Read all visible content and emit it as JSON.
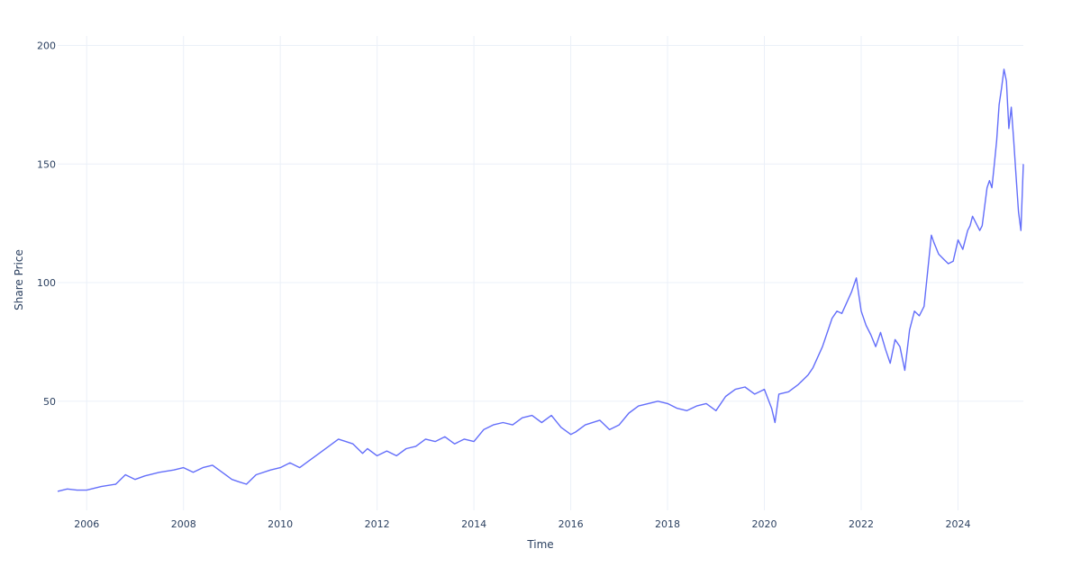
{
  "chart_data": {
    "type": "line",
    "title": "",
    "xlabel": "Time",
    "ylabel": "Share Price",
    "xlim": [
      2005.4,
      2025.35
    ],
    "ylim": [
      4,
      204
    ],
    "x_ticks": [
      {
        "value": 2006,
        "label": "2006"
      },
      {
        "value": 2008,
        "label": "2008"
      },
      {
        "value": 2010,
        "label": "2010"
      },
      {
        "value": 2012,
        "label": "2012"
      },
      {
        "value": 2014,
        "label": "2014"
      },
      {
        "value": 2016,
        "label": "2016"
      },
      {
        "value": 2018,
        "label": "2018"
      },
      {
        "value": 2020,
        "label": "2020"
      },
      {
        "value": 2022,
        "label": "2022"
      },
      {
        "value": 2024,
        "label": "2024"
      }
    ],
    "y_ticks": [
      {
        "value": 50,
        "label": "50"
      },
      {
        "value": 100,
        "label": "100"
      },
      {
        "value": 150,
        "label": "150"
      },
      {
        "value": 200,
        "label": "200"
      }
    ],
    "grid": true,
    "line_color": "#636efa",
    "series": [
      {
        "name": "",
        "x": [
          2005.4,
          2005.6,
          2005.8,
          2006.0,
          2006.3,
          2006.6,
          2006.8,
          2007.0,
          2007.2,
          2007.5,
          2007.8,
          2008.0,
          2008.2,
          2008.4,
          2008.6,
          2008.8,
          2009.0,
          2009.15,
          2009.3,
          2009.5,
          2009.8,
          2010.0,
          2010.2,
          2010.4,
          2010.6,
          2010.8,
          2011.0,
          2011.2,
          2011.5,
          2011.7,
          2011.8,
          2012.0,
          2012.2,
          2012.4,
          2012.6,
          2012.8,
          2013.0,
          2013.2,
          2013.4,
          2013.6,
          2013.8,
          2014.0,
          2014.2,
          2014.4,
          2014.6,
          2014.8,
          2015.0,
          2015.2,
          2015.4,
          2015.6,
          2015.8,
          2016.0,
          2016.1,
          2016.3,
          2016.6,
          2016.8,
          2017.0,
          2017.2,
          2017.4,
          2017.6,
          2017.8,
          2018.0,
          2018.2,
          2018.4,
          2018.6,
          2018.8,
          2019.0,
          2019.2,
          2019.4,
          2019.6,
          2019.8,
          2020.0,
          2020.15,
          2020.22,
          2020.3,
          2020.5,
          2020.7,
          2020.9,
          2021.0,
          2021.2,
          2021.4,
          2021.5,
          2021.6,
          2021.8,
          2021.9,
          2022.0,
          2022.1,
          2022.2,
          2022.3,
          2022.4,
          2022.5,
          2022.6,
          2022.7,
          2022.8,
          2022.9,
          2023.0,
          2023.1,
          2023.2,
          2023.3,
          2023.45,
          2023.5,
          2023.6,
          2023.7,
          2023.8,
          2023.9,
          2024.0,
          2024.1,
          2024.2,
          2024.25,
          2024.3,
          2024.45,
          2024.5,
          2024.6,
          2024.65,
          2024.7,
          2024.75,
          2024.8,
          2024.85,
          2024.9,
          2024.95,
          2025.0,
          2025.05,
          2025.1,
          2025.15,
          2025.2,
          2025.25,
          2025.3,
          2025.35
        ],
        "values": [
          12,
          13,
          12.5,
          12.5,
          14,
          15,
          19,
          17,
          18.5,
          20,
          21,
          22,
          20,
          22,
          23,
          20,
          17,
          16,
          15,
          19,
          21,
          22,
          24,
          22,
          25,
          28,
          31,
          34,
          32,
          28,
          30,
          27,
          29,
          27,
          30,
          31,
          34,
          33,
          35,
          32,
          34,
          33,
          38,
          40,
          41,
          40,
          43,
          44,
          41,
          44,
          39,
          36,
          37,
          40,
          42,
          38,
          40,
          45,
          48,
          49,
          50,
          49,
          47,
          46,
          48,
          49,
          46,
          52,
          55,
          56,
          53,
          55,
          47,
          41,
          53,
          54,
          57,
          61,
          64,
          73,
          85,
          88,
          87,
          96,
          102,
          88,
          82,
          78,
          73,
          79,
          72,
          66,
          76,
          73,
          63,
          80,
          88,
          86,
          90,
          120,
          117,
          112,
          110,
          108,
          109,
          118,
          114,
          122,
          124,
          128,
          122,
          124,
          140,
          143,
          140,
          150,
          160,
          175,
          182,
          190,
          185,
          165,
          174,
          160,
          145,
          130,
          122,
          150
        ]
      }
    ]
  }
}
